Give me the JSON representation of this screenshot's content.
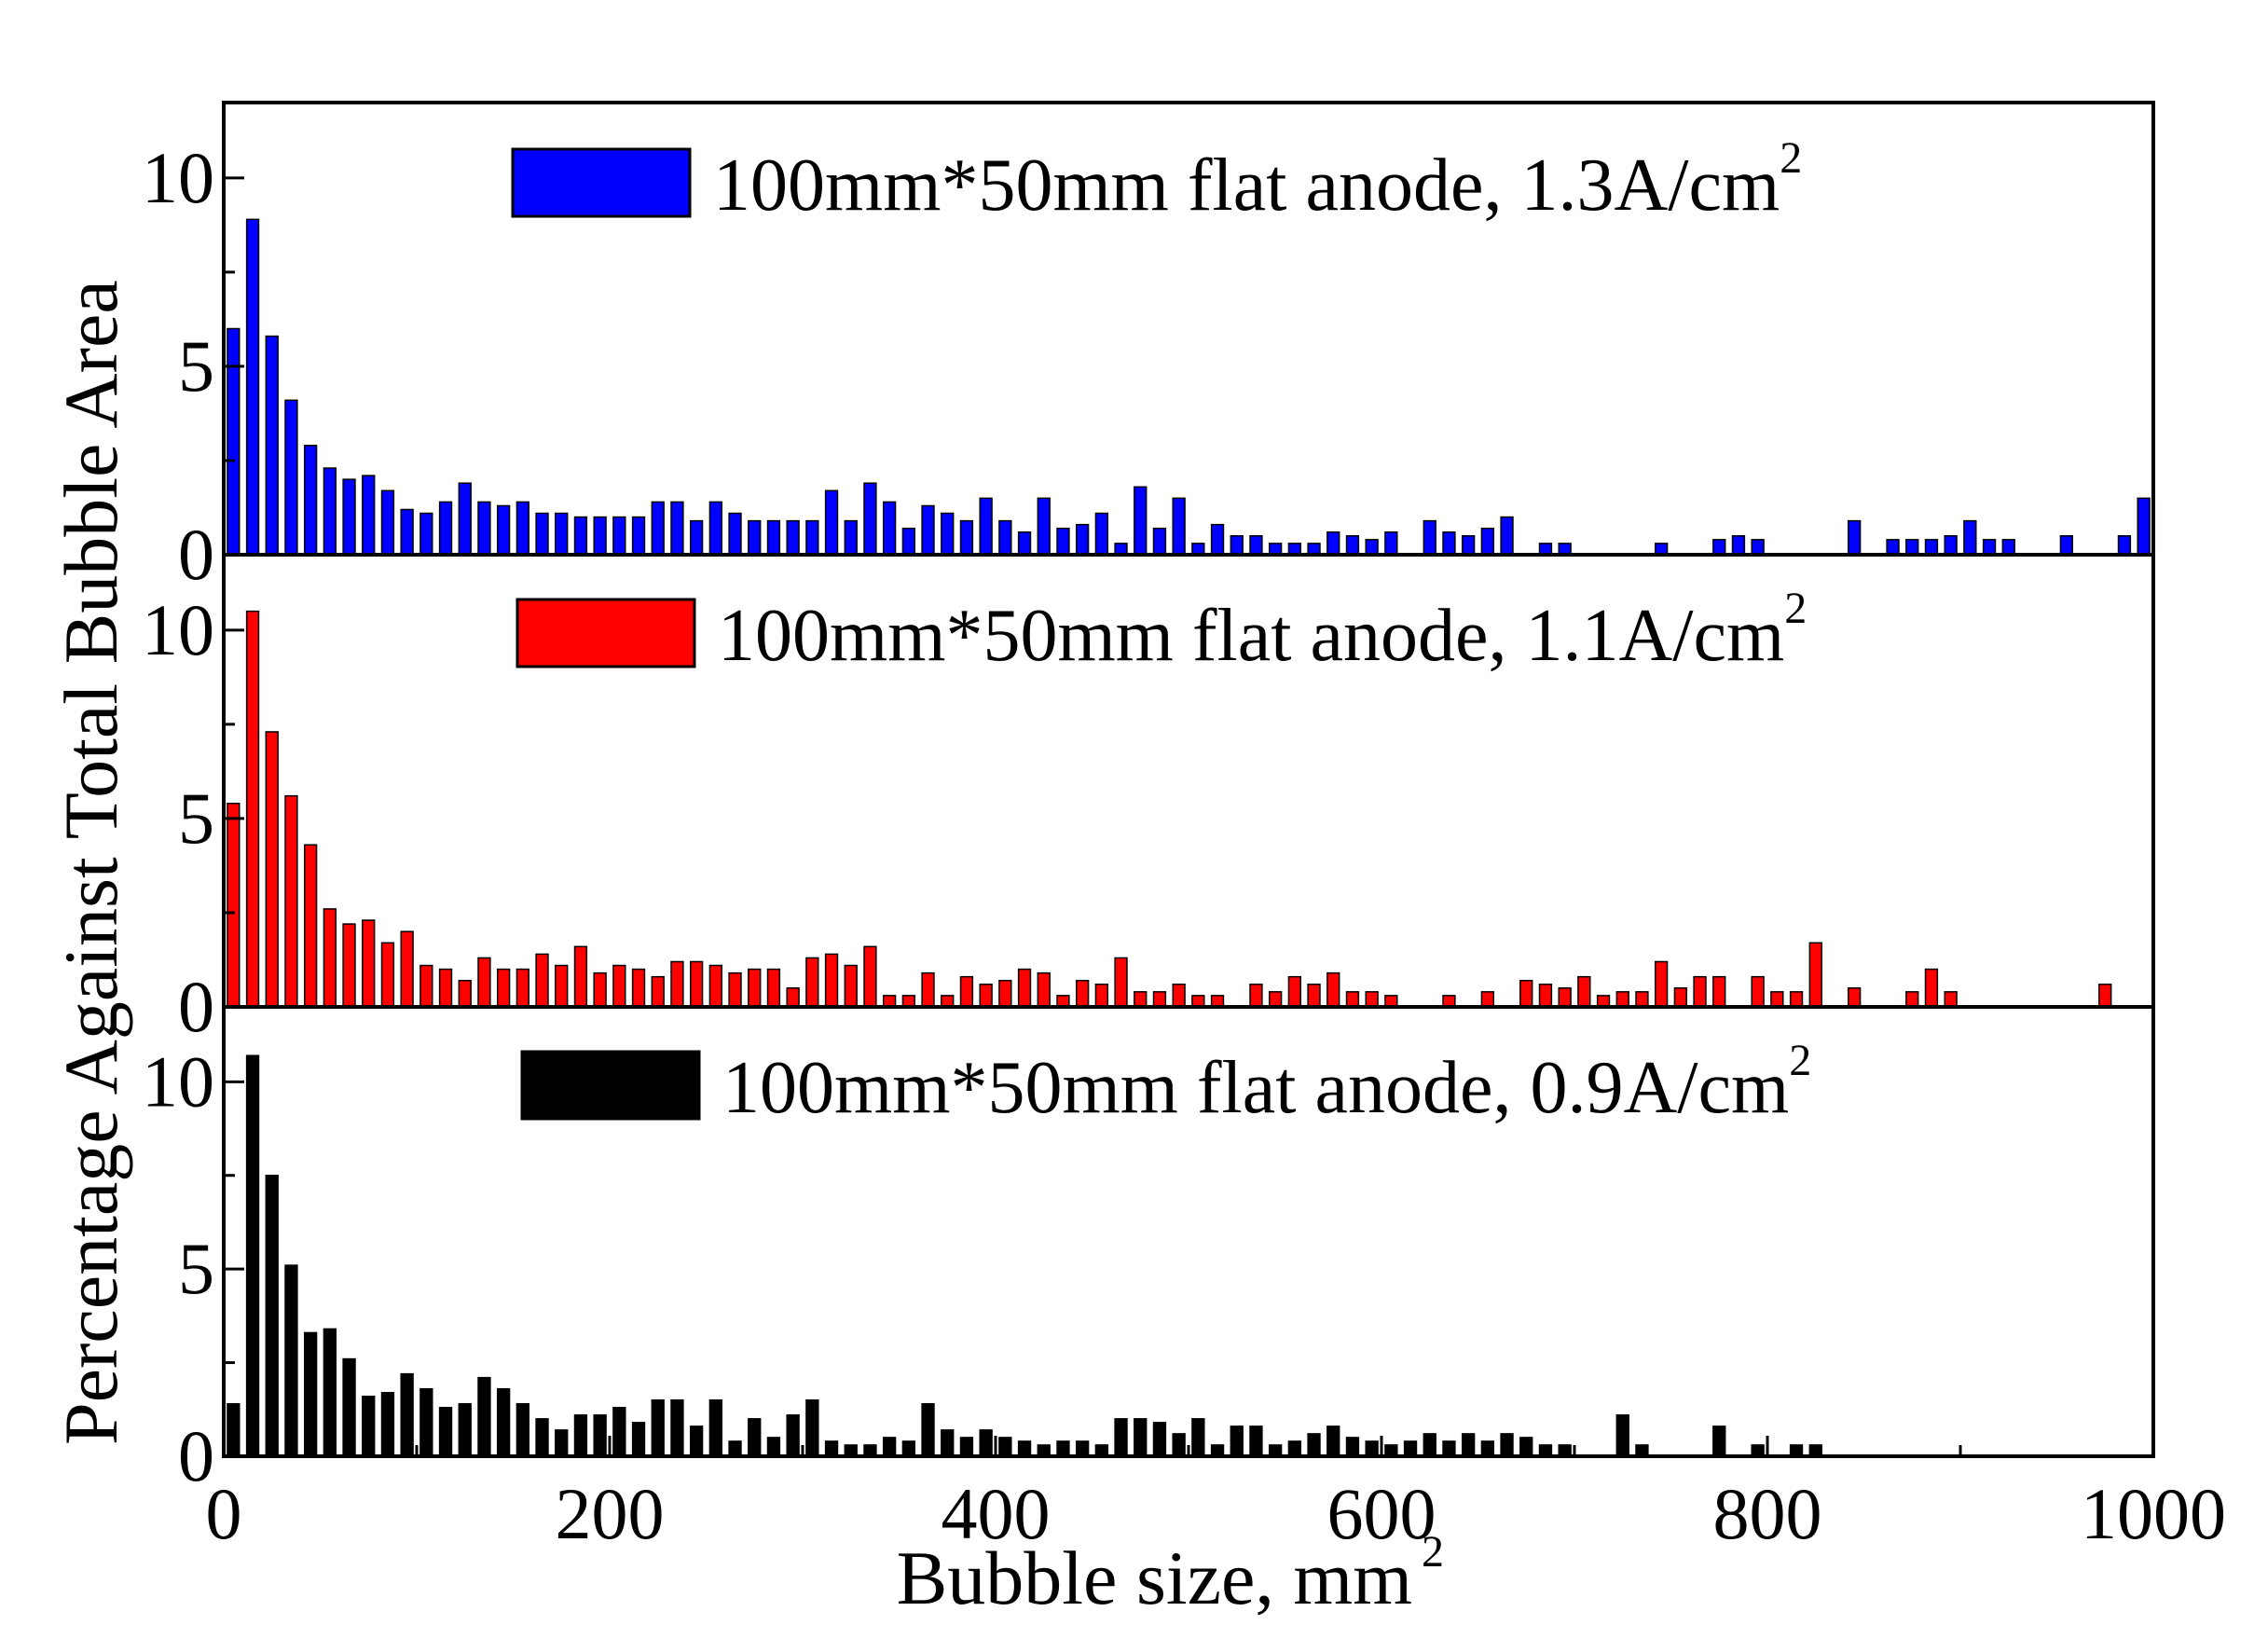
{
  "chart_data": {
    "type": "bar",
    "layout": "three vertically stacked panels sharing x axis",
    "xlabel": "Bubble size, mm",
    "xlabel_sup": "2",
    "ylabel": "Percentage Against Total Bubble Area",
    "xlim": [
      0,
      1000
    ],
    "ylim": [
      0,
      12
    ],
    "x_ticks": [
      0,
      200,
      400,
      600,
      800,
      1000
    ],
    "x_tick_labels": [
      "0",
      "200",
      "400",
      "600",
      "800",
      "1000"
    ],
    "y_ticks": [
      0,
      5,
      10
    ],
    "y_tick_labels": [
      "0",
      "5",
      "10"
    ],
    "bin_width": 10,
    "panels": [
      {
        "name": "1.3A/cm2",
        "legend_text": "100mm*50mm flat anode, 1.3A/cm",
        "legend_sup": "2",
        "color": "#0000ff",
        "bins": [
          [
            10,
            6.0
          ],
          [
            20,
            8.9
          ],
          [
            30,
            5.8
          ],
          [
            40,
            4.1
          ],
          [
            50,
            2.9
          ],
          [
            60,
            2.3
          ],
          [
            70,
            2.0
          ],
          [
            80,
            2.1
          ],
          [
            90,
            1.7
          ],
          [
            100,
            1.2
          ],
          [
            110,
            1.1
          ],
          [
            120,
            1.4
          ],
          [
            130,
            1.9
          ],
          [
            140,
            1.4
          ],
          [
            150,
            1.3
          ],
          [
            160,
            1.4
          ],
          [
            170,
            1.1
          ],
          [
            180,
            1.1
          ],
          [
            190,
            1.0
          ],
          [
            200,
            1.0
          ],
          [
            210,
            1.0
          ],
          [
            220,
            1.0
          ],
          [
            230,
            1.4
          ],
          [
            240,
            1.4
          ],
          [
            250,
            0.9
          ],
          [
            260,
            1.4
          ],
          [
            270,
            1.1
          ],
          [
            280,
            0.9
          ],
          [
            290,
            0.9
          ],
          [
            300,
            0.9
          ],
          [
            310,
            0.9
          ],
          [
            320,
            1.7
          ],
          [
            330,
            0.9
          ],
          [
            340,
            1.9
          ],
          [
            350,
            1.4
          ],
          [
            360,
            0.7
          ],
          [
            370,
            1.3
          ],
          [
            380,
            1.1
          ],
          [
            390,
            0.9
          ],
          [
            400,
            1.5
          ],
          [
            410,
            0.9
          ],
          [
            420,
            0.6
          ],
          [
            430,
            1.5
          ],
          [
            440,
            0.7
          ],
          [
            450,
            0.8
          ],
          [
            460,
            1.1
          ],
          [
            470,
            0.3
          ],
          [
            480,
            1.8
          ],
          [
            490,
            0.7
          ],
          [
            500,
            1.5
          ],
          [
            510,
            0.3
          ],
          [
            520,
            0.8
          ],
          [
            530,
            0.5
          ],
          [
            540,
            0.5
          ],
          [
            550,
            0.3
          ],
          [
            560,
            0.3
          ],
          [
            570,
            0.3
          ],
          [
            580,
            0.6
          ],
          [
            590,
            0.5
          ],
          [
            600,
            0.4
          ],
          [
            610,
            0.6
          ],
          [
            630,
            0.9
          ],
          [
            640,
            0.6
          ],
          [
            650,
            0.5
          ],
          [
            660,
            0.7
          ],
          [
            670,
            1.0
          ],
          [
            690,
            0.3
          ],
          [
            700,
            0.3
          ],
          [
            750,
            0.3
          ],
          [
            780,
            0.4
          ],
          [
            790,
            0.5
          ],
          [
            800,
            0.4
          ],
          [
            850,
            0.9
          ],
          [
            870,
            0.4
          ],
          [
            880,
            0.4
          ],
          [
            890,
            0.4
          ],
          [
            900,
            0.5
          ],
          [
            910,
            0.9
          ],
          [
            920,
            0.4
          ],
          [
            930,
            0.4
          ],
          [
            960,
            0.5
          ],
          [
            990,
            0.5
          ],
          [
            1000,
            1.5
          ]
        ]
      },
      {
        "name": "1.1A/cm2",
        "legend_text": "100mm*50mm flat anode, 1.1A/cm",
        "legend_sup": "2",
        "color": "#ff0000",
        "bins": [
          [
            10,
            5.4
          ],
          [
            20,
            10.5
          ],
          [
            30,
            7.3
          ],
          [
            40,
            5.6
          ],
          [
            50,
            4.3
          ],
          [
            60,
            2.6
          ],
          [
            70,
            2.2
          ],
          [
            80,
            2.3
          ],
          [
            90,
            1.7
          ],
          [
            100,
            2.0
          ],
          [
            110,
            1.1
          ],
          [
            120,
            1.0
          ],
          [
            130,
            0.7
          ],
          [
            140,
            1.3
          ],
          [
            150,
            1.0
          ],
          [
            160,
            1.0
          ],
          [
            170,
            1.4
          ],
          [
            180,
            1.1
          ],
          [
            190,
            1.6
          ],
          [
            200,
            0.9
          ],
          [
            210,
            1.1
          ],
          [
            220,
            1.0
          ],
          [
            230,
            0.8
          ],
          [
            240,
            1.2
          ],
          [
            250,
            1.2
          ],
          [
            260,
            1.1
          ],
          [
            270,
            0.9
          ],
          [
            280,
            1.0
          ],
          [
            290,
            1.0
          ],
          [
            300,
            0.5
          ],
          [
            310,
            1.3
          ],
          [
            320,
            1.4
          ],
          [
            330,
            1.1
          ],
          [
            340,
            1.6
          ],
          [
            350,
            0.3
          ],
          [
            360,
            0.3
          ],
          [
            370,
            0.9
          ],
          [
            380,
            0.3
          ],
          [
            390,
            0.8
          ],
          [
            400,
            0.6
          ],
          [
            410,
            0.7
          ],
          [
            420,
            1.0
          ],
          [
            430,
            0.9
          ],
          [
            440,
            0.3
          ],
          [
            450,
            0.7
          ],
          [
            460,
            0.6
          ],
          [
            470,
            1.3
          ],
          [
            480,
            0.4
          ],
          [
            490,
            0.4
          ],
          [
            500,
            0.6
          ],
          [
            510,
            0.3
          ],
          [
            520,
            0.3
          ],
          [
            540,
            0.6
          ],
          [
            550,
            0.4
          ],
          [
            560,
            0.8
          ],
          [
            570,
            0.6
          ],
          [
            580,
            0.9
          ],
          [
            590,
            0.4
          ],
          [
            600,
            0.4
          ],
          [
            610,
            0.3
          ],
          [
            640,
            0.3
          ],
          [
            660,
            0.4
          ],
          [
            680,
            0.7
          ],
          [
            690,
            0.6
          ],
          [
            700,
            0.5
          ],
          [
            710,
            0.8
          ],
          [
            720,
            0.3
          ],
          [
            730,
            0.4
          ],
          [
            740,
            0.4
          ],
          [
            750,
            1.2
          ],
          [
            760,
            0.5
          ],
          [
            770,
            0.8
          ],
          [
            780,
            0.8
          ],
          [
            800,
            0.8
          ],
          [
            810,
            0.4
          ],
          [
            820,
            0.4
          ],
          [
            830,
            1.7
          ],
          [
            850,
            0.5
          ],
          [
            880,
            0.4
          ],
          [
            890,
            1.0
          ],
          [
            900,
            0.4
          ],
          [
            980,
            0.6
          ]
        ]
      },
      {
        "name": "0.9A/cm2",
        "legend_text": "100mm*50mm flat anode, 0.9A/cm",
        "legend_sup": "2",
        "color": "#000000",
        "bins": [
          [
            10,
            1.4
          ],
          [
            20,
            10.7
          ],
          [
            30,
            7.5
          ],
          [
            40,
            5.1
          ],
          [
            50,
            3.3
          ],
          [
            60,
            3.4
          ],
          [
            70,
            2.6
          ],
          [
            80,
            1.6
          ],
          [
            90,
            1.7
          ],
          [
            100,
            2.2
          ],
          [
            110,
            1.8
          ],
          [
            120,
            1.3
          ],
          [
            130,
            1.4
          ],
          [
            140,
            2.1
          ],
          [
            150,
            1.8
          ],
          [
            160,
            1.4
          ],
          [
            170,
            1.0
          ],
          [
            180,
            0.7
          ],
          [
            190,
            1.1
          ],
          [
            200,
            1.1
          ],
          [
            210,
            1.3
          ],
          [
            220,
            0.9
          ],
          [
            230,
            1.5
          ],
          [
            240,
            1.5
          ],
          [
            250,
            0.8
          ],
          [
            260,
            1.5
          ],
          [
            270,
            0.4
          ],
          [
            280,
            1.0
          ],
          [
            290,
            0.5
          ],
          [
            300,
            1.1
          ],
          [
            310,
            1.5
          ],
          [
            320,
            0.4
          ],
          [
            330,
            0.3
          ],
          [
            340,
            0.3
          ],
          [
            350,
            0.5
          ],
          [
            360,
            0.4
          ],
          [
            370,
            1.4
          ],
          [
            380,
            0.7
          ],
          [
            390,
            0.5
          ],
          [
            400,
            0.7
          ],
          [
            410,
            0.5
          ],
          [
            420,
            0.4
          ],
          [
            430,
            0.3
          ],
          [
            440,
            0.4
          ],
          [
            450,
            0.4
          ],
          [
            460,
            0.3
          ],
          [
            470,
            1.0
          ],
          [
            480,
            1.0
          ],
          [
            490,
            0.9
          ],
          [
            500,
            0.6
          ],
          [
            510,
            1.0
          ],
          [
            520,
            0.3
          ],
          [
            530,
            0.8
          ],
          [
            540,
            0.8
          ],
          [
            550,
            0.3
          ],
          [
            560,
            0.4
          ],
          [
            570,
            0.6
          ],
          [
            580,
            0.8
          ],
          [
            590,
            0.5
          ],
          [
            600,
            0.4
          ],
          [
            610,
            0.3
          ],
          [
            620,
            0.4
          ],
          [
            630,
            0.6
          ],
          [
            640,
            0.4
          ],
          [
            650,
            0.6
          ],
          [
            660,
            0.4
          ],
          [
            670,
            0.6
          ],
          [
            680,
            0.5
          ],
          [
            690,
            0.3
          ],
          [
            700,
            0.3
          ],
          [
            730,
            1.1
          ],
          [
            740,
            0.3
          ],
          [
            780,
            0.8
          ],
          [
            800,
            0.3
          ],
          [
            820,
            0.3
          ],
          [
            830,
            0.3
          ]
        ]
      }
    ]
  }
}
